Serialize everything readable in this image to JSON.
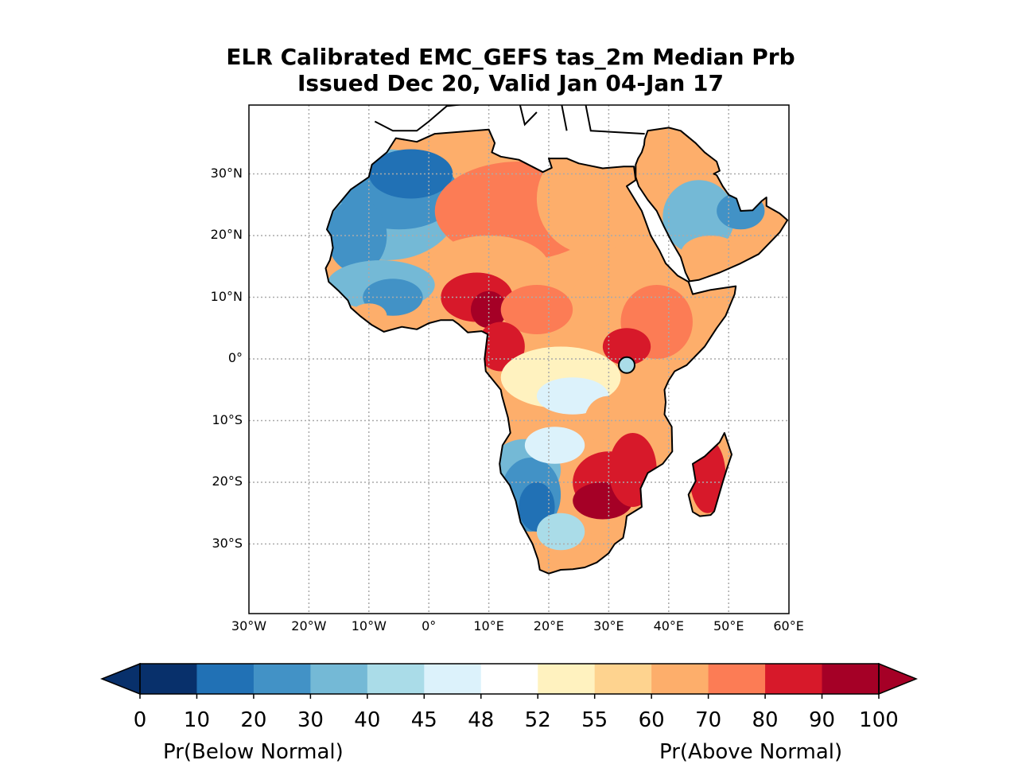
{
  "title": {
    "line1": "ELR Calibrated EMC_GEFS tas_2m Median Prb",
    "line2": "Issued Dec 20, Valid Jan 04-Jan 17"
  },
  "map": {
    "lon_range": [
      -30,
      60
    ],
    "lat_range": [
      -40,
      42
    ],
    "gridlines": "dotted",
    "x_ticks": [
      "30°W",
      "20°W",
      "10°W",
      "0°",
      "10°E",
      "20°E",
      "30°E",
      "40°E",
      "50°E",
      "60°E"
    ],
    "y_ticks": [
      "30°N",
      "20°N",
      "10°N",
      "0°",
      "10°S",
      "20°S",
      "30°S"
    ],
    "regions": [
      {
        "name": "Northwest Africa / Sahara west",
        "category": "10-30"
      },
      {
        "name": "West African coast (Guinea, Sierra Leone, Liberia)",
        "category": "20-45"
      },
      {
        "name": "Libya / Egypt",
        "category": "60-80"
      },
      {
        "name": "Sahel / Chad / Central African Republic",
        "category": "60-90"
      },
      {
        "name": "Nigeria / Cameroon",
        "category": "80-100"
      },
      {
        "name": "Congo Basin west coast (Gabon)",
        "category": "80-90"
      },
      {
        "name": "DR Congo interior",
        "category": "45-60"
      },
      {
        "name": "East Africa / Ethiopia",
        "category": "60-80"
      },
      {
        "name": "Arabian Peninsula interior",
        "category": "30-48"
      },
      {
        "name": "Namibia / Angola south",
        "category": "10-40"
      },
      {
        "name": "Zimbabwe / Mozambique / South Africa NE",
        "category": "80-100"
      },
      {
        "name": "Madagascar",
        "category": "80-100"
      },
      {
        "name": "South Africa south coast",
        "category": "55-70"
      }
    ]
  },
  "colorbar": {
    "ticks": [
      "0",
      "10",
      "20",
      "30",
      "40",
      "45",
      "48",
      "52",
      "55",
      "60",
      "70",
      "80",
      "90",
      "100"
    ],
    "colors": [
      "#08306b",
      "#2171b5",
      "#4292c6",
      "#74b9d6",
      "#aadce8",
      "#dcf2fb",
      "#ffffff",
      "#fff2bf",
      "#fed38f",
      "#fdae6b",
      "#fc7c55",
      "#d7192a",
      "#a50026"
    ],
    "extend": "both",
    "label_left": "Pr(Below Normal)",
    "label_right": "Pr(Above Normal)"
  }
}
